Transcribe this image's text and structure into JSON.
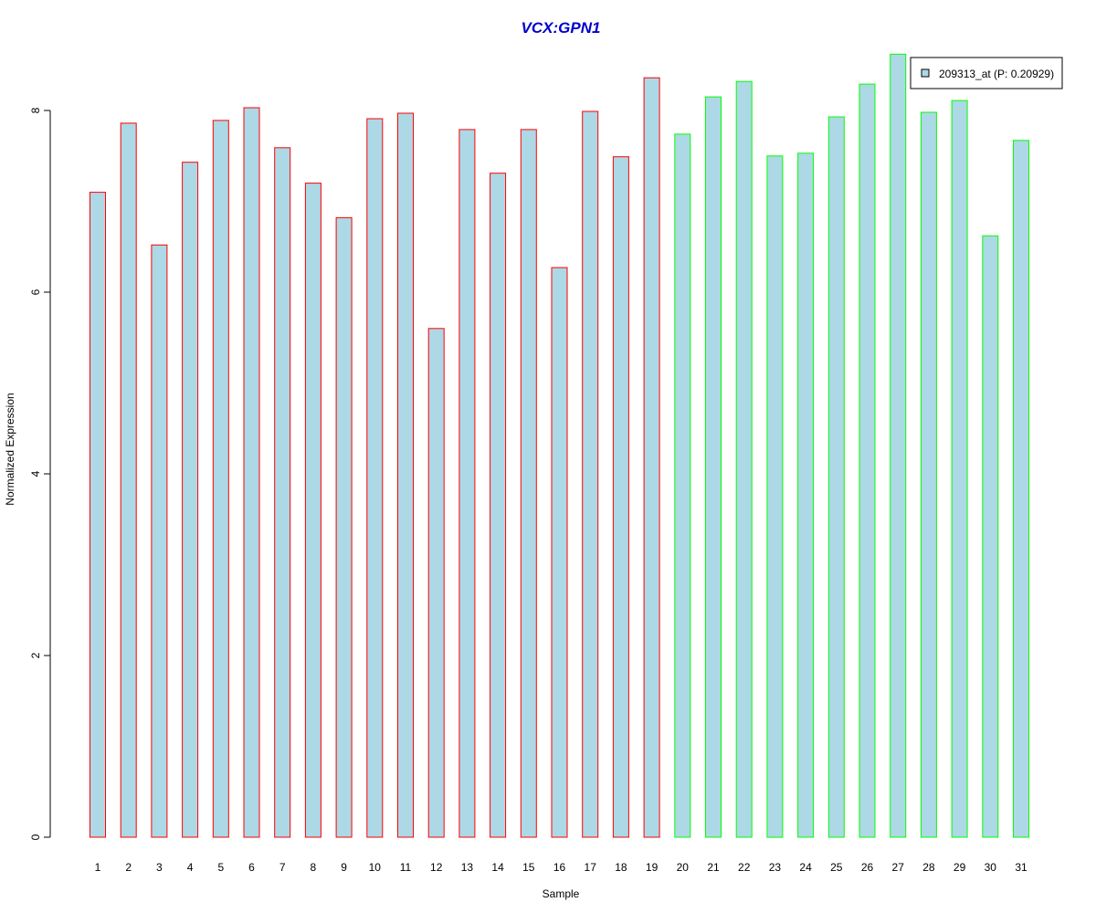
{
  "chart_data": {
    "type": "bar",
    "title": "VCX:GPN1",
    "xlabel": "Sample",
    "ylabel": "Normalized Expression",
    "categories": [
      "1",
      "2",
      "3",
      "4",
      "5",
      "6",
      "7",
      "8",
      "9",
      "10",
      "11",
      "12",
      "13",
      "14",
      "15",
      "16",
      "17",
      "18",
      "19",
      "20",
      "21",
      "22",
      "23",
      "24",
      "25",
      "26",
      "27",
      "28",
      "29",
      "30",
      "31"
    ],
    "series": [
      {
        "name": "209313_at (P: 0.20929)",
        "values": [
          7.1,
          7.86,
          6.52,
          7.43,
          7.89,
          8.03,
          7.59,
          7.2,
          6.82,
          7.91,
          7.97,
          5.6,
          7.79,
          7.31,
          7.79,
          6.27,
          7.99,
          7.49,
          8.36,
          7.74,
          8.15,
          8.32,
          7.5,
          7.53,
          7.93,
          8.29,
          8.62,
          7.98,
          8.11,
          6.62,
          7.67
        ]
      }
    ],
    "group_of_sample": [
      1,
      1,
      1,
      1,
      1,
      1,
      1,
      1,
      1,
      1,
      1,
      1,
      1,
      1,
      1,
      1,
      1,
      1,
      1,
      2,
      2,
      2,
      2,
      2,
      2,
      2,
      2,
      2,
      2,
      2,
      2
    ],
    "yticks": [
      0,
      2,
      4,
      6,
      8
    ],
    "ylim": [
      0,
      8.62
    ],
    "legend_position": "top-right",
    "grid": false,
    "colors": {
      "bar_fill": "#add8e6",
      "group1_border": "#ff0000",
      "group2_border": "#00ff00",
      "title": "#0000cd",
      "axis": "#000000"
    }
  }
}
